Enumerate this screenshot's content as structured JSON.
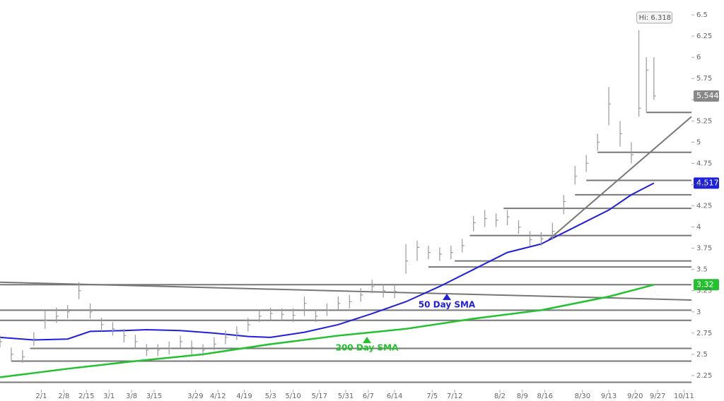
{
  "chart_data": {
    "type": "ohlc",
    "x": [
      0,
      3,
      6,
      9,
      12,
      15,
      18,
      21,
      24,
      27,
      30,
      33,
      36,
      39,
      42,
      45,
      48,
      51,
      54,
      57,
      60,
      63,
      66,
      69,
      72,
      75,
      78,
      81,
      84,
      87,
      90,
      93,
      96,
      99,
      102,
      105,
      108,
      111,
      114,
      117,
      120,
      123,
      126,
      129,
      132,
      135,
      138,
      141,
      144,
      147,
      150,
      153,
      156,
      159,
      162,
      165,
      168,
      170,
      172,
      174
    ],
    "high": [
      2.72,
      2.58,
      2.55,
      2.76,
      3.02,
      3.05,
      3.08,
      3.35,
      3.1,
      2.93,
      2.88,
      2.8,
      2.73,
      2.62,
      2.62,
      2.65,
      2.72,
      2.66,
      2.62,
      2.7,
      2.78,
      2.83,
      2.93,
      3.02,
      3.05,
      3.04,
      3.04,
      3.18,
      3.03,
      3.1,
      3.18,
      3.2,
      3.28,
      3.38,
      3.33,
      3.32,
      3.8,
      3.84,
      3.78,
      3.76,
      3.78,
      3.86,
      4.13,
      4.2,
      4.16,
      4.2,
      4.08,
      3.95,
      3.94,
      4.05,
      4.38,
      4.72,
      4.85,
      5.1,
      5.65,
      5.25,
      5.0,
      6.318,
      6.0,
      6.0
    ],
    "low": [
      2.58,
      2.42,
      2.4,
      2.6,
      2.8,
      2.87,
      2.92,
      3.15,
      2.92,
      2.77,
      2.72,
      2.64,
      2.57,
      2.48,
      2.48,
      2.5,
      2.58,
      2.5,
      2.48,
      2.55,
      2.62,
      2.67,
      2.77,
      2.88,
      2.9,
      2.9,
      2.88,
      2.95,
      2.88,
      2.95,
      3.02,
      3.04,
      3.12,
      3.22,
      3.17,
      3.16,
      3.45,
      3.6,
      3.62,
      3.6,
      3.62,
      3.7,
      3.95,
      4.0,
      4.0,
      4.02,
      3.92,
      3.78,
      3.78,
      3.85,
      4.15,
      4.5,
      4.65,
      4.9,
      5.2,
      4.95,
      4.75,
      5.3,
      5.35,
      5.5
    ],
    "close": [
      2.65,
      2.5,
      2.47,
      2.68,
      2.9,
      2.95,
      3.0,
      3.25,
      3.0,
      2.85,
      2.8,
      2.72,
      2.65,
      2.55,
      2.55,
      2.57,
      2.65,
      2.58,
      2.55,
      2.62,
      2.7,
      2.75,
      2.85,
      2.95,
      2.98,
      2.97,
      2.96,
      3.1,
      2.95,
      3.02,
      3.1,
      3.12,
      3.2,
      3.3,
      3.25,
      3.24,
      3.6,
      3.76,
      3.7,
      3.68,
      3.7,
      3.78,
      4.05,
      4.1,
      4.08,
      4.12,
      4.0,
      3.85,
      3.86,
      3.95,
      4.3,
      4.6,
      4.75,
      5.0,
      5.45,
      5.1,
      4.85,
      5.4,
      5.85,
      5.544
    ],
    "bar_color": "#999999",
    "series": [
      {
        "name": "50 Day SMA",
        "color": "#1f1fe0",
        "x": [
          0,
          9,
          18,
          24,
          33,
          39,
          48,
          57,
          66,
          72,
          81,
          90,
          99,
          108,
          117,
          126,
          135,
          144,
          153,
          162,
          168,
          174
        ],
        "values": [
          2.7,
          2.67,
          2.68,
          2.77,
          2.78,
          2.79,
          2.78,
          2.75,
          2.71,
          2.7,
          2.76,
          2.85,
          2.98,
          3.12,
          3.3,
          3.5,
          3.7,
          3.8,
          4.0,
          4.2,
          4.38,
          4.517
        ],
        "last": 4.517
      },
      {
        "name": "200 Day SMA",
        "color": "#22c22e",
        "x": [
          0,
          18,
          36,
          54,
          72,
          90,
          108,
          126,
          144,
          162,
          174
        ],
        "values": [
          2.23,
          2.33,
          2.42,
          2.5,
          2.62,
          2.72,
          2.8,
          2.92,
          3.02,
          3.18,
          3.32
        ],
        "last": 3.32
      }
    ],
    "high_label": "Hi: 6.318",
    "last_price": 5.544,
    "hlines": [
      {
        "y": 2.17,
        "x0": 0
      },
      {
        "y": 2.42,
        "x0": 3
      },
      {
        "y": 2.57,
        "x0": 8
      },
      {
        "y": 2.9,
        "x0": 0
      },
      {
        "y": 3.02,
        "x0": 0
      },
      {
        "y": 3.32,
        "x0": 0
      },
      {
        "y": 3.53,
        "x0": 114
      },
      {
        "y": 3.6,
        "x0": 121
      },
      {
        "y": 3.9,
        "x0": 125
      },
      {
        "y": 4.22,
        "x0": 134
      },
      {
        "y": 4.38,
        "x0": 153
      },
      {
        "y": 4.55,
        "x0": 156
      },
      {
        "y": 4.88,
        "x0": 159
      },
      {
        "y": 5.35,
        "x0": 172
      }
    ],
    "trendlines": [
      {
        "x": [
          0,
          184
        ],
        "y": [
          3.35,
          3.14
        ]
      },
      {
        "x": [
          146,
          184
        ],
        "y": [
          3.85,
          5.3
        ]
      }
    ],
    "xlim": [
      0,
      184
    ],
    "xticks": [
      {
        "value": 11,
        "label": "2/1"
      },
      {
        "value": 17,
        "label": "2/8"
      },
      {
        "value": 23,
        "label": "2/15"
      },
      {
        "value": 29,
        "label": "3/1"
      },
      {
        "value": 35,
        "label": "3/8"
      },
      {
        "value": 41,
        "label": "3/15"
      },
      {
        "value": 52,
        "label": "3/29"
      },
      {
        "value": 58,
        "label": "4/12"
      },
      {
        "value": 65,
        "label": "4/19"
      },
      {
        "value": 72,
        "label": "5/3"
      },
      {
        "value": 78,
        "label": "5/10"
      },
      {
        "value": 85,
        "label": "5/17"
      },
      {
        "value": 92,
        "label": "5/31"
      },
      {
        "value": 98,
        "label": "6/7"
      },
      {
        "value": 105,
        "label": "6/14"
      },
      {
        "value": 115,
        "label": "7/5"
      },
      {
        "value": 121,
        "label": "7/12"
      },
      {
        "value": 133,
        "label": "8/2"
      },
      {
        "value": 139,
        "label": "8/9"
      },
      {
        "value": 145,
        "label": "8/16"
      },
      {
        "value": 155,
        "label": "8/30"
      },
      {
        "value": 162,
        "label": "9/13"
      },
      {
        "value": 169,
        "label": "9/20"
      },
      {
        "value": 175,
        "label": "9/27"
      },
      {
        "value": 182,
        "label": "10/11"
      }
    ],
    "ylim": [
      1.95,
      6.675
    ],
    "yticks": [
      2.25,
      2.5,
      2.75,
      3,
      3.25,
      3.5,
      3.75,
      4,
      4.25,
      4.5,
      4.75,
      5,
      5.25,
      5.5,
      5.75,
      6,
      6.25,
      6.5
    ]
  }
}
